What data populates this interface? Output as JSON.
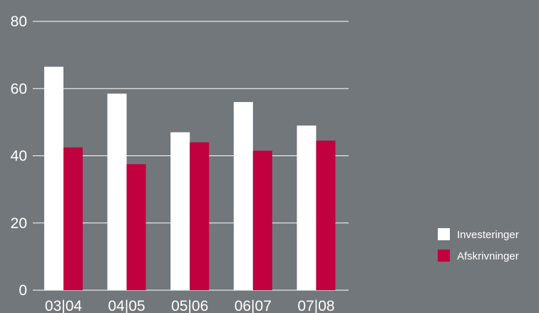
{
  "chart_data": {
    "type": "bar",
    "categories": [
      "03|04",
      "04|05",
      "05|06",
      "06|07",
      "07|08"
    ],
    "series": [
      {
        "name": "Investeringer",
        "values": [
          66.5,
          58.5,
          47,
          56,
          49
        ],
        "color": "#ffffff"
      },
      {
        "name": "Afskrivninger",
        "values": [
          42.5,
          37.5,
          44,
          41.5,
          44.5
        ],
        "color": "#c0003f"
      }
    ],
    "yticks": [
      0,
      20,
      40,
      60,
      80
    ],
    "ylim": [
      0,
      80
    ],
    "grid": true,
    "legend_position": "right",
    "background": "#72777b"
  }
}
